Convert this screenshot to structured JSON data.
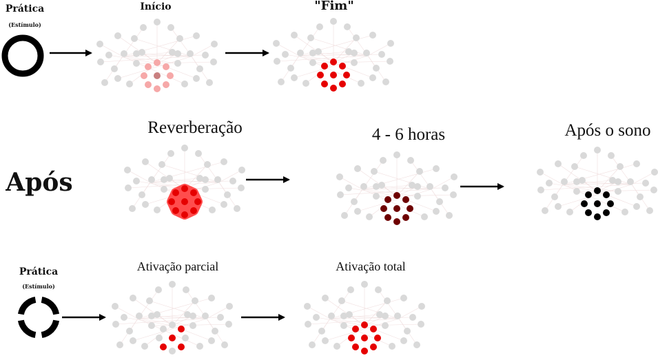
{
  "labels": {
    "pratica_top": "Prática",
    "estimulo_top": "(Estímulo)",
    "inicio": "Início",
    "fim": "\"Fim\"",
    "reverberacao": "Reverberação",
    "quatro_seis_horas": "4 - 6 horas",
    "apos_o_sono": "Após o sono",
    "apos": "Após",
    "pratica_bottom": "Prática",
    "estimulo_bottom": "(Estímulo)",
    "ativacao_parcial": "Ativação parcial",
    "ativacao_total": "Ativação total"
  },
  "colors": {
    "inactive_node": "#d9d9d9",
    "edge": "#f0dede",
    "light_red": "#f6a8a8",
    "red": "#e60000",
    "dark_red": "#6e0000",
    "black": "#000000",
    "reverb_fill": "#ff4d4d",
    "center_mid": "#c98080"
  },
  "networks": [
    {
      "id": "inicio",
      "circle_color": "light_red",
      "center": "center_mid",
      "circle_active": [
        0,
        1,
        2,
        3,
        4,
        5,
        6,
        7
      ],
      "glow": false
    },
    {
      "id": "fim",
      "circle_color": "red",
      "center": "red",
      "circle_active": [
        0,
        1,
        2,
        3,
        4,
        5,
        6,
        7
      ],
      "glow": false
    },
    {
      "id": "reverberacao",
      "circle_color": "red",
      "center": "red",
      "circle_active": [
        0,
        1,
        2,
        3,
        4,
        5,
        6,
        7
      ],
      "glow": true
    },
    {
      "id": "quatro_seis_horas",
      "circle_color": "dark_red",
      "center": "dark_red",
      "circle_active": [
        0,
        1,
        2,
        3,
        4,
        5,
        6,
        7
      ],
      "glow": false
    },
    {
      "id": "apos_o_sono",
      "circle_color": "black",
      "center": "black",
      "circle_active": [
        0,
        1,
        2,
        3,
        4,
        5,
        6,
        7
      ],
      "glow": false
    },
    {
      "id": "ativacao_parcial",
      "circle_color": "red",
      "center": "red",
      "circle_active": [
        1,
        3,
        5
      ],
      "glow": false
    },
    {
      "id": "ativacao_total",
      "circle_color": "red",
      "center": "red",
      "circle_active": [
        0,
        1,
        2,
        3,
        4,
        5,
        6,
        7
      ],
      "glow": false
    }
  ]
}
